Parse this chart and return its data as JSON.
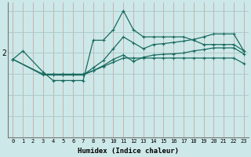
{
  "xlabel": "Humidex (Indice chaleur)",
  "bg_color": "#cde8e8",
  "line_color": "#1a6b60",
  "grid_color_v": "#b8d8d8",
  "grid_color_h": "#a8c8c8",
  "xlim": [
    -0.5,
    23.5
  ],
  "ylim": [
    0,
    3.2
  ],
  "ytick_val": 2.0,
  "x_ticks": [
    0,
    1,
    2,
    3,
    4,
    5,
    6,
    7,
    8,
    9,
    10,
    11,
    12,
    13,
    14,
    15,
    16,
    17,
    18,
    19,
    20,
    21,
    22,
    23
  ],
  "line1_x": [
    0,
    1,
    3,
    4,
    5,
    6,
    7,
    8,
    9,
    10,
    11,
    12,
    13,
    14,
    15,
    16,
    17,
    18,
    19,
    20,
    21,
    22,
    23
  ],
  "line1_y": [
    1.85,
    2.05,
    1.55,
    1.35,
    1.35,
    1.35,
    1.35,
    2.3,
    2.3,
    2.55,
    3.0,
    2.55,
    2.38,
    2.38,
    2.38,
    2.38,
    2.38,
    2.3,
    2.2,
    2.2,
    2.2,
    2.2,
    2.05
  ],
  "line2_x": [
    0,
    3,
    4,
    5,
    6,
    7,
    8,
    9,
    10,
    11,
    12,
    13,
    14,
    15,
    16,
    17,
    18,
    19,
    20,
    21,
    22,
    23
  ],
  "line2_y": [
    1.85,
    1.5,
    1.48,
    1.48,
    1.48,
    1.48,
    1.65,
    1.82,
    2.1,
    2.38,
    2.24,
    2.1,
    2.2,
    2.22,
    2.25,
    2.28,
    2.32,
    2.38,
    2.45,
    2.45,
    2.45,
    2.05
  ],
  "line3_x": [
    0,
    3,
    4,
    5,
    6,
    7,
    8,
    9,
    10,
    11,
    12,
    13,
    14,
    15,
    16,
    17,
    18,
    19,
    20,
    21,
    22,
    23
  ],
  "line3_y": [
    1.85,
    1.48,
    1.48,
    1.48,
    1.48,
    1.48,
    1.58,
    1.7,
    1.85,
    1.95,
    1.8,
    1.9,
    1.95,
    1.97,
    1.98,
    2.0,
    2.05,
    2.08,
    2.12,
    2.12,
    2.12,
    1.98
  ],
  "line4_x": [
    3,
    4,
    5,
    6,
    7,
    8,
    9,
    10,
    11,
    12,
    13,
    14,
    15,
    16,
    17,
    18,
    19,
    20,
    21,
    22,
    23
  ],
  "line4_y": [
    1.5,
    1.5,
    1.5,
    1.5,
    1.5,
    1.58,
    1.68,
    1.78,
    1.88,
    1.88,
    1.88,
    1.88,
    1.88,
    1.88,
    1.88,
    1.88,
    1.88,
    1.88,
    1.88,
    1.88,
    1.75
  ]
}
